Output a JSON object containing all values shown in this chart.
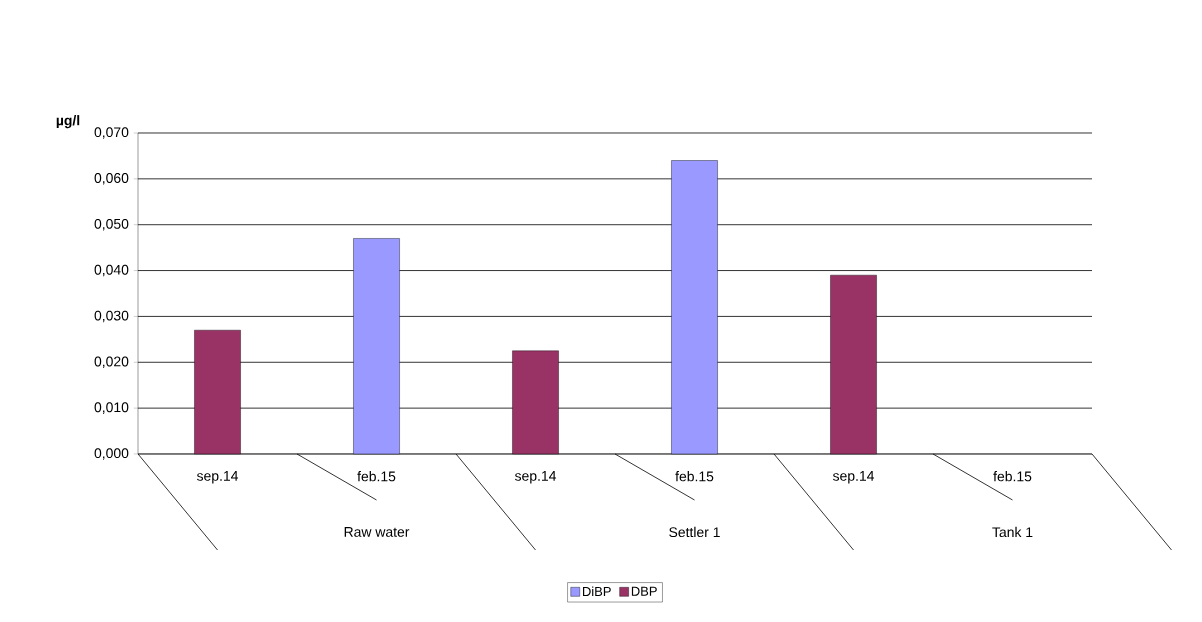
{
  "chart_data": {
    "type": "bar",
    "ylabel": "µg/l",
    "categories": [
      "sep.14",
      "feb.15",
      "sep.14",
      "feb.15",
      "sep.14",
      "feb.15"
    ],
    "series": [
      {
        "name": "DiBP",
        "color": "#9999ff",
        "values": [
          null,
          0.047,
          null,
          0.064,
          null,
          null
        ]
      },
      {
        "name": "DBP",
        "color": "#993366",
        "values": [
          0.027,
          null,
          0.0225,
          null,
          0.039,
          null
        ]
      }
    ],
    "ylim": [
      0,
      0.07
    ],
    "yticks": [
      {
        "value": 0,
        "label": "0,000"
      },
      {
        "value": 0.01,
        "label": "0,010"
      },
      {
        "value": 0.02,
        "label": "0,020"
      },
      {
        "value": 0.03,
        "label": "0,030"
      },
      {
        "value": 0.04,
        "label": "0,040"
      },
      {
        "value": 0.05,
        "label": "0,050"
      },
      {
        "value": 0.06,
        "label": "0,060"
      },
      {
        "value": 0.07,
        "label": "0,070"
      }
    ],
    "grid": "y",
    "legend": "bottom",
    "annotations": [
      "Raw water",
      "Settler 1",
      "Tank 1"
    ]
  }
}
